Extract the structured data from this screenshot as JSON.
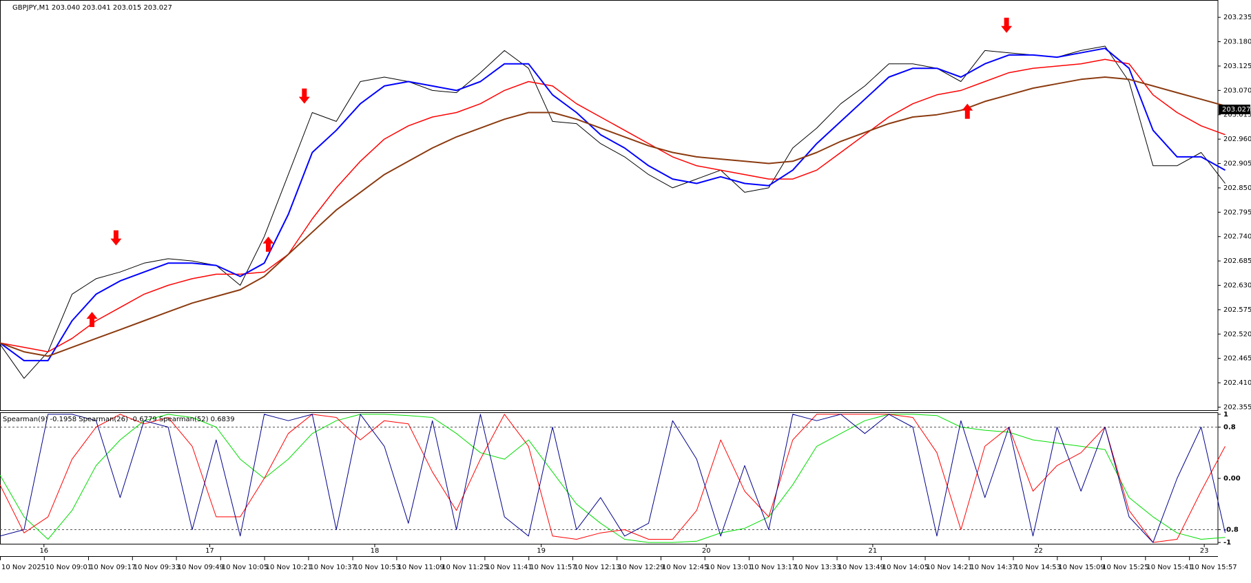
{
  "chart_data": [
    {
      "type": "line",
      "title": "GBPJPY,M1  203.040 203.041 203.015 203.027",
      "xlim": [
        0,
        50.7
      ],
      "ylim": [
        202.348,
        203.271
      ],
      "yticks": [
        202.355,
        {
          "value": 202.41,
          "label": "202.410"
        },
        202.465,
        {
          "value": 202.52,
          "label": "202.520"
        },
        202.575,
        {
          "value": 202.63,
          "label": "202.630"
        },
        202.685,
        {
          "value": 202.74,
          "label": "202.740"
        },
        202.795,
        {
          "value": 202.85,
          "label": "202.850"
        },
        202.905,
        {
          "value": 202.96,
          "label": "202.960"
        },
        203.015,
        {
          "value": 203.07,
          "label": "203.070"
        },
        203.125,
        {
          "value": 203.18,
          "label": "203.180"
        },
        203.235
      ],
      "last_price": 203.027,
      "series": [
        {
          "color": "#000000",
          "width": 1,
          "values": [
            202.497,
            202.42,
            202.48,
            202.61,
            202.645,
            202.66,
            202.68,
            202.69,
            202.685,
            202.675,
            202.63,
            202.74,
            202.88,
            203.02,
            203.0,
            203.09,
            203.1,
            203.09,
            203.07,
            203.065,
            203.11,
            203.16,
            203.12,
            203.0,
            202.995,
            202.95,
            202.92,
            202.88,
            202.85,
            202.87,
            202.89,
            202.84,
            202.85,
            202.94,
            202.985,
            203.04,
            203.08,
            203.13,
            203.13,
            203.12,
            203.09,
            203.16,
            203.155,
            203.15,
            203.145,
            203.16,
            203.17,
            203.09,
            202.9,
            202.9,
            202.93,
            202.86
          ]
        },
        {
          "color": "#ff0000",
          "width": 1.5,
          "values": [
            202.5,
            202.49,
            202.48,
            202.51,
            202.55,
            202.58,
            202.61,
            202.63,
            202.645,
            202.655,
            202.655,
            202.66,
            202.7,
            202.78,
            202.85,
            202.91,
            202.96,
            202.99,
            203.01,
            203.02,
            203.04,
            203.07,
            203.09,
            203.08,
            203.04,
            203.01,
            202.98,
            202.95,
            202.92,
            202.9,
            202.89,
            202.88,
            202.87,
            202.87,
            202.89,
            202.93,
            202.97,
            203.01,
            203.04,
            203.06,
            203.07,
            203.09,
            203.11,
            203.12,
            203.125,
            203.13,
            203.14,
            203.13,
            203.06,
            203.02,
            202.99,
            202.97
          ]
        },
        {
          "color": "#0000ff",
          "width": 2,
          "values": [
            202.5,
            202.46,
            202.46,
            202.55,
            202.61,
            202.64,
            202.66,
            202.68,
            202.68,
            202.675,
            202.65,
            202.68,
            202.79,
            202.93,
            202.98,
            203.04,
            203.08,
            203.09,
            203.08,
            203.07,
            203.09,
            203.13,
            203.13,
            203.06,
            203.02,
            202.97,
            202.94,
            202.9,
            202.87,
            202.86,
            202.875,
            202.86,
            202.855,
            202.89,
            202.95,
            203.0,
            203.05,
            203.1,
            203.12,
            203.12,
            203.1,
            203.13,
            203.15,
            203.15,
            203.145,
            203.155,
            203.165,
            203.12,
            202.98,
            202.92,
            202.92,
            202.89
          ]
        },
        {
          "color": "#8b3a0f",
          "width": 2,
          "values": [
            202.5,
            202.48,
            202.47,
            202.49,
            202.51,
            202.53,
            202.55,
            202.57,
            202.59,
            202.605,
            202.62,
            202.65,
            202.7,
            202.75,
            202.8,
            202.84,
            202.88,
            202.91,
            202.94,
            202.965,
            202.985,
            203.005,
            203.02,
            203.02,
            203.005,
            202.985,
            202.965,
            202.945,
            202.93,
            202.92,
            202.915,
            202.91,
            202.905,
            202.91,
            202.93,
            202.955,
            202.975,
            202.995,
            203.01,
            203.015,
            203.025,
            203.045,
            203.06,
            203.075,
            203.085,
            203.095,
            203.1,
            203.095,
            203.08,
            203.065,
            203.05,
            203.035
          ]
        }
      ],
      "signals": {
        "color": "#ff0000",
        "points": [
          {
            "index": 4.83,
            "value": 202.72,
            "dir": "down"
          },
          {
            "index": 3.83,
            "value": 202.57,
            "dir": "up"
          },
          {
            "index": 12.67,
            "value": 203.04,
            "dir": "down"
          },
          {
            "index": 11.17,
            "value": 202.74,
            "dir": "up"
          },
          {
            "index": 41.9,
            "value": 203.2,
            "dir": "down"
          },
          {
            "index": 40.27,
            "value": 203.04,
            "dir": "up"
          }
        ]
      }
    },
    {
      "type": "line",
      "title": "Spearman(9) -0.1958  Spearman(26) -0.6779  Spearman(52) 0.6839",
      "xlim": [
        0,
        50.7
      ],
      "ylim": [
        -1.02,
        1.02
      ],
      "yticks": [
        1,
        0.8,
        {
          "value": 0,
          "label": "0.00"
        },
        -0.8,
        -1
      ],
      "levels": [
        0.8,
        -0.8
      ],
      "series": [
        {
          "color": "#00dd00",
          "width": 1,
          "values": [
            0.05,
            -0.6,
            -0.95,
            -0.5,
            0.2,
            0.6,
            0.9,
            1.0,
            0.95,
            0.8,
            0.3,
            0.0,
            0.3,
            0.7,
            0.9,
            1.0,
            1.0,
            0.98,
            0.95,
            0.7,
            0.4,
            0.3,
            0.6,
            0.1,
            -0.4,
            -0.7,
            -0.95,
            -1.0,
            -1.0,
            -0.98,
            -0.85,
            -0.78,
            -0.6,
            -0.1,
            0.5,
            0.7,
            0.9,
            1.0,
            1.0,
            0.98,
            0.8,
            0.75,
            0.72,
            0.6,
            0.55,
            0.5,
            0.45,
            -0.3,
            -0.6,
            -0.85,
            -0.95,
            -0.92
          ]
        },
        {
          "color": "#ff0000",
          "width": 1,
          "values": [
            -0.1,
            -0.85,
            -0.6,
            0.3,
            0.8,
            1.0,
            0.85,
            0.95,
            0.5,
            -0.6,
            -0.6,
            0.0,
            0.7,
            1.0,
            0.95,
            0.6,
            0.9,
            0.85,
            0.1,
            -0.5,
            0.3,
            1.0,
            0.5,
            -0.9,
            -0.95,
            -0.85,
            -0.8,
            -0.95,
            -0.95,
            -0.5,
            0.6,
            -0.2,
            -0.6,
            0.6,
            1.0,
            1.0,
            1.0,
            1.0,
            0.95,
            0.4,
            -0.8,
            0.5,
            0.8,
            -0.2,
            0.2,
            0.4,
            0.8,
            -0.5,
            -1.0,
            -0.95,
            -0.2,
            0.5
          ]
        },
        {
          "color": "#00008b",
          "width": 1,
          "values": [
            -0.9,
            -0.8,
            1.0,
            1.0,
            0.9,
            -0.3,
            0.9,
            0.8,
            -0.8,
            0.6,
            -0.9,
            1.0,
            0.9,
            1.0,
            -0.8,
            1.0,
            0.5,
            -0.7,
            0.9,
            -0.8,
            1.0,
            -0.6,
            -0.9,
            0.8,
            -0.8,
            -0.3,
            -0.9,
            -0.7,
            0.9,
            0.3,
            -0.9,
            0.2,
            -0.8,
            1.0,
            0.9,
            1.0,
            0.7,
            1.0,
            0.8,
            -0.9,
            0.9,
            -0.3,
            0.8,
            -0.9,
            0.8,
            -0.2,
            0.8,
            -0.6,
            -1.0,
            0.0,
            0.8,
            -0.85
          ]
        }
      ],
      "day_ticks": [
        {
          "value": 1.83,
          "label": "16"
        },
        {
          "value": 8.73,
          "label": "17"
        },
        {
          "value": 15.6,
          "label": "18"
        },
        {
          "value": 22.53,
          "label": "19"
        },
        {
          "value": 29.4,
          "label": "20"
        },
        {
          "value": 36.33,
          "label": "21"
        },
        {
          "value": 43.23,
          "label": "22"
        },
        {
          "value": 50.13,
          "label": "23"
        }
      ],
      "xticks": [
        {
          "value": 0,
          "label": "10 Nov 2025"
        },
        {
          "value": 1.83,
          "label": "10 Nov 09:01"
        },
        {
          "value": 3.67,
          "label": "10 Nov 09:17"
        },
        {
          "value": 5.5,
          "label": "10 Nov 09:33"
        },
        {
          "value": 7.33,
          "label": "10 Nov 09:49"
        },
        {
          "value": 9.17,
          "label": "10 Nov 10:05"
        },
        {
          "value": 11,
          "label": "10 Nov 10:21"
        },
        {
          "value": 12.83,
          "label": "10 Nov 10:37"
        },
        {
          "value": 14.67,
          "label": "10 Nov 10:53"
        },
        {
          "value": 16.5,
          "label": "10 Nov 11:09"
        },
        {
          "value": 18.33,
          "label": "10 Nov 11:25"
        },
        {
          "value": 20.17,
          "label": "10 Nov 11:41"
        },
        {
          "value": 22,
          "label": "10 Nov 11:57"
        },
        {
          "value": 23.83,
          "label": "10 Nov 12:13"
        },
        {
          "value": 25.67,
          "label": "10 Nov 12:29"
        },
        {
          "value": 27.5,
          "label": "10 Nov 12:45"
        },
        {
          "value": 29.33,
          "label": "10 Nov 13:01"
        },
        {
          "value": 31.17,
          "label": "10 Nov 13:17"
        },
        {
          "value": 33,
          "label": "10 Nov 13:33"
        },
        {
          "value": 34.83,
          "label": "10 Nov 13:49"
        },
        {
          "value": 36.67,
          "label": "10 Nov 14:05"
        },
        {
          "value": 38.5,
          "label": "10 Nov 14:21"
        },
        {
          "value": 40.33,
          "label": "10 Nov 14:37"
        },
        {
          "value": 42.17,
          "label": "10 Nov 14:53"
        },
        {
          "value": 44,
          "label": "10 Nov 15:09"
        },
        {
          "value": 45.83,
          "label": "10 Nov 15:25"
        },
        {
          "value": 47.67,
          "label": "10 Nov 15:41"
        },
        {
          "value": 49.5,
          "label": "10 Nov 15:57"
        }
      ]
    }
  ]
}
